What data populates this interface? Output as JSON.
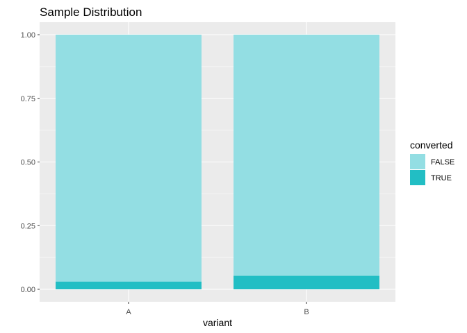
{
  "chart_data": {
    "type": "bar",
    "stacked": true,
    "title": "Sample Distribution",
    "xlabel": "variant",
    "ylabel": "",
    "categories": [
      "A",
      "B"
    ],
    "ylim": [
      0,
      1.05
    ],
    "yticks": [
      0,
      0.25,
      0.5,
      0.75,
      1.0
    ],
    "ytick_labels": [
      "0.00",
      "0.25",
      "0.50",
      "0.75",
      "1.00"
    ],
    "grid": true,
    "panel_background": "#ebebeb",
    "legend": {
      "title": "converted",
      "position": "right"
    },
    "series": [
      {
        "name": "FALSE",
        "color": "#93dee3",
        "values": [
          0.97,
          0.947
        ]
      },
      {
        "name": "TRUE",
        "color": "#22bec4",
        "values": [
          0.03,
          0.053
        ]
      }
    ]
  }
}
